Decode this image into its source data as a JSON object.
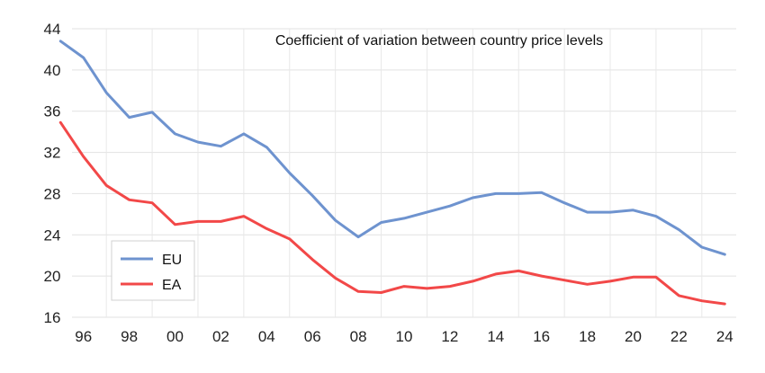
{
  "chart_data": {
    "type": "line",
    "title": "Coefficient of variation between country price levels",
    "xlabel": "",
    "ylabel": "",
    "xlim": [
      1995.5,
      2024.5
    ],
    "ylim": [
      16,
      44
    ],
    "y_ticks": [
      16,
      20,
      24,
      28,
      32,
      36,
      40,
      44
    ],
    "x_ticks": [
      {
        "value": 1996,
        "label": "96"
      },
      {
        "value": 1998,
        "label": "98"
      },
      {
        "value": 2000,
        "label": "00"
      },
      {
        "value": 2002,
        "label": "02"
      },
      {
        "value": 2004,
        "label": "04"
      },
      {
        "value": 2006,
        "label": "06"
      },
      {
        "value": 2008,
        "label": "08"
      },
      {
        "value": 2010,
        "label": "10"
      },
      {
        "value": 2012,
        "label": "12"
      },
      {
        "value": 2014,
        "label": "14"
      },
      {
        "value": 2016,
        "label": "16"
      },
      {
        "value": 2018,
        "label": "18"
      },
      {
        "value": 2020,
        "label": "20"
      },
      {
        "value": 2022,
        "label": "22"
      },
      {
        "value": 2024,
        "label": "24"
      }
    ],
    "grid": true,
    "legend_position": "bottom-left",
    "x": [
      1995,
      1996,
      1997,
      1998,
      1999,
      2000,
      2001,
      2002,
      2003,
      2004,
      2005,
      2006,
      2007,
      2008,
      2009,
      2010,
      2011,
      2012,
      2013,
      2014,
      2015,
      2016,
      2017,
      2018,
      2019,
      2020,
      2021,
      2022,
      2023,
      2024
    ],
    "series": [
      {
        "name": "EU",
        "color": "#6e93cf",
        "values": [
          42.8,
          41.2,
          37.8,
          35.4,
          35.9,
          33.8,
          33.0,
          32.6,
          33.8,
          32.5,
          30.0,
          27.8,
          25.4,
          23.8,
          25.2,
          25.6,
          26.2,
          26.8,
          27.6,
          28.0,
          28.0,
          28.1,
          27.1,
          26.2,
          26.2,
          26.4,
          25.8,
          24.5,
          22.8,
          22.1
        ]
      },
      {
        "name": "EA",
        "color": "#f24848",
        "values": [
          34.9,
          31.6,
          28.8,
          27.4,
          27.1,
          25.0,
          25.3,
          25.3,
          25.8,
          24.6,
          23.6,
          21.6,
          19.8,
          18.5,
          18.4,
          19.0,
          18.8,
          19.0,
          19.5,
          20.2,
          20.5,
          20.0,
          19.6,
          19.2,
          19.5,
          19.9,
          19.9,
          18.1,
          17.6,
          17.3
        ]
      }
    ]
  }
}
